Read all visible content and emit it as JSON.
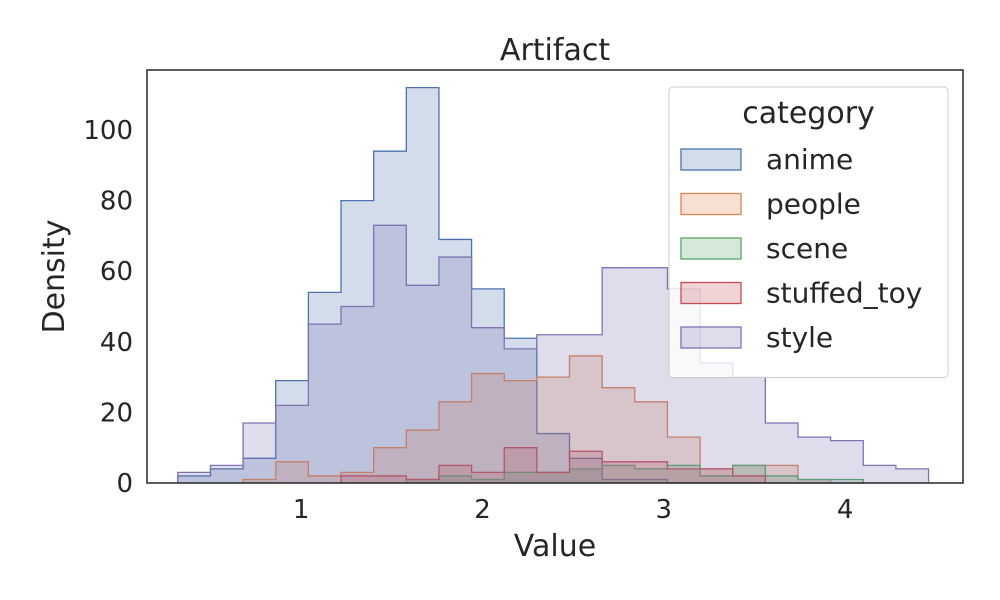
{
  "chart_data": {
    "type": "histogram",
    "title": "Artifact",
    "xlabel": "Value",
    "ylabel": "Density",
    "xlim": [
      0.15,
      4.65
    ],
    "ylim": [
      0,
      117
    ],
    "x_ticks": [
      1,
      2,
      3,
      4
    ],
    "y_ticks": [
      0,
      20,
      40,
      60,
      80,
      100
    ],
    "grid": false,
    "legend": {
      "title": "category",
      "placement": "top-right"
    },
    "series": [
      {
        "name": "anime",
        "color": "#4c72b0",
        "edges": [
          0.32,
          0.5,
          0.68,
          0.86,
          1.04,
          1.22,
          1.4,
          1.58,
          1.76,
          1.94,
          2.12,
          2.3,
          2.48,
          2.66,
          2.84,
          3.02,
          3.2,
          3.38,
          3.56,
          3.74,
          3.92,
          4.1
        ],
        "values": [
          2,
          4,
          7,
          29,
          54,
          80,
          94,
          112,
          69,
          55,
          41,
          14,
          7,
          1,
          1,
          0,
          0,
          0,
          0,
          0,
          0
        ]
      },
      {
        "name": "people",
        "color": "#dd8452",
        "edges": [
          0.68,
          0.86,
          1.04,
          1.22,
          1.4,
          1.58,
          1.76,
          1.94,
          2.12,
          2.3,
          2.48,
          2.66,
          2.84,
          3.02,
          3.2,
          3.38,
          3.56,
          3.74,
          3.92
        ],
        "values": [
          1,
          6,
          2,
          3,
          10,
          15,
          23,
          31,
          29,
          30,
          36,
          27,
          23,
          13,
          4,
          5,
          5,
          1
        ]
      },
      {
        "name": "scene",
        "color": "#55a868",
        "edges": [
          1.58,
          1.76,
          1.94,
          2.12,
          2.3,
          2.48,
          2.66,
          2.84,
          3.02,
          3.2,
          3.38,
          3.56,
          3.74,
          3.92,
          4.1
        ],
        "values": [
          1,
          2,
          1,
          3,
          3,
          4,
          5,
          4,
          5,
          2,
          5,
          2,
          1,
          1
        ]
      },
      {
        "name": "stuffed_toy",
        "color": "#c44e52",
        "edges": [
          1.22,
          1.4,
          1.58,
          1.76,
          1.94,
          2.12,
          2.3,
          2.48,
          2.66,
          2.84,
          3.02,
          3.2,
          3.38,
          3.56
        ],
        "values": [
          2,
          2,
          1,
          5,
          3,
          10,
          3,
          9,
          6,
          6,
          4,
          4,
          2
        ]
      },
      {
        "name": "style",
        "color": "#8172b3",
        "edges": [
          0.32,
          0.5,
          0.68,
          0.86,
          1.04,
          1.22,
          1.4,
          1.58,
          1.76,
          1.94,
          2.12,
          2.3,
          2.48,
          2.66,
          2.84,
          3.02,
          3.2,
          3.38,
          3.56,
          3.74,
          3.92,
          4.1,
          4.28,
          4.46
        ],
        "values": [
          3,
          5,
          17,
          22,
          45,
          50,
          73,
          56,
          64,
          44,
          38,
          42,
          42,
          61,
          61,
          55,
          34,
          30,
          17,
          13,
          12,
          5,
          4
        ]
      }
    ]
  }
}
